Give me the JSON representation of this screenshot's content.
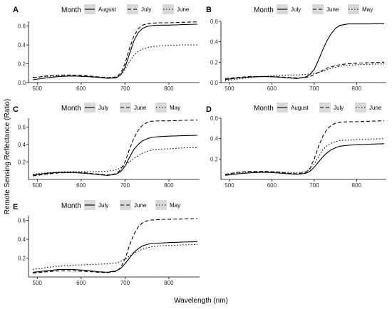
{
  "figure": {
    "xlabel": "Wavelength (nm)",
    "ylabel": "Remote Sensing Reflectance (Ratio)"
  },
  "chart_data": [
    {
      "type": "line",
      "panel": "A",
      "legend_title": "Month",
      "xlim": [
        480,
        870
      ],
      "ylim": [
        0,
        0.65
      ],
      "x_ticks": [
        500,
        600,
        700,
        800
      ],
      "y_ticks": [
        0.0,
        0.2,
        0.4,
        0.6
      ],
      "series": [
        {
          "name": "August",
          "dash": "solid",
          "x": [
            490,
            520,
            550,
            580,
            610,
            640,
            660,
            680,
            690,
            700,
            710,
            720,
            730,
            740,
            750,
            760,
            780,
            800,
            830,
            865
          ],
          "y": [
            0.03,
            0.05,
            0.065,
            0.07,
            0.065,
            0.055,
            0.045,
            0.05,
            0.08,
            0.16,
            0.3,
            0.44,
            0.53,
            0.575,
            0.595,
            0.605,
            0.61,
            0.61,
            0.615,
            0.62
          ]
        },
        {
          "name": "July",
          "dash": "dashed",
          "x": [
            490,
            520,
            550,
            580,
            610,
            640,
            660,
            680,
            690,
            700,
            710,
            720,
            730,
            740,
            750,
            760,
            780,
            800,
            830,
            865
          ],
          "y": [
            0.05,
            0.07,
            0.08,
            0.08,
            0.075,
            0.06,
            0.05,
            0.06,
            0.1,
            0.2,
            0.36,
            0.49,
            0.57,
            0.61,
            0.625,
            0.63,
            0.635,
            0.635,
            0.64,
            0.645
          ]
        },
        {
          "name": "June",
          "dash": "dotted",
          "x": [
            490,
            520,
            550,
            580,
            610,
            640,
            660,
            680,
            690,
            700,
            710,
            720,
            730,
            740,
            750,
            760,
            780,
            800,
            830,
            865
          ],
          "y": [
            0.055,
            0.065,
            0.07,
            0.07,
            0.065,
            0.06,
            0.055,
            0.06,
            0.08,
            0.14,
            0.22,
            0.29,
            0.33,
            0.355,
            0.37,
            0.38,
            0.39,
            0.395,
            0.4,
            0.4
          ]
        }
      ]
    },
    {
      "type": "line",
      "panel": "B",
      "legend_title": "Month",
      "xlim": [
        480,
        870
      ],
      "ylim": [
        0,
        0.6
      ],
      "x_ticks": [
        500,
        600,
        700,
        800
      ],
      "y_ticks": [
        0.0,
        0.2,
        0.4,
        0.6
      ],
      "series": [
        {
          "name": "July",
          "dash": "solid",
          "x": [
            490,
            520,
            550,
            580,
            610,
            640,
            660,
            680,
            690,
            700,
            710,
            720,
            730,
            740,
            750,
            760,
            780,
            800,
            830,
            865
          ],
          "y": [
            0.03,
            0.045,
            0.055,
            0.06,
            0.055,
            0.045,
            0.04,
            0.055,
            0.08,
            0.13,
            0.22,
            0.32,
            0.41,
            0.48,
            0.53,
            0.56,
            0.575,
            0.575,
            0.575,
            0.58
          ]
        },
        {
          "name": "June",
          "dash": "dashed",
          "x": [
            490,
            520,
            550,
            580,
            610,
            640,
            660,
            680,
            690,
            700,
            710,
            720,
            730,
            740,
            750,
            760,
            780,
            800,
            830,
            865
          ],
          "y": [
            0.04,
            0.05,
            0.06,
            0.06,
            0.058,
            0.05,
            0.045,
            0.05,
            0.06,
            0.08,
            0.1,
            0.12,
            0.14,
            0.155,
            0.165,
            0.175,
            0.185,
            0.19,
            0.195,
            0.2
          ]
        },
        {
          "name": "May",
          "dash": "dotted",
          "x": [
            490,
            520,
            550,
            580,
            610,
            640,
            660,
            680,
            690,
            700,
            710,
            720,
            730,
            740,
            750,
            760,
            780,
            800,
            830,
            865
          ],
          "y": [
            0.02,
            0.035,
            0.05,
            0.06,
            0.07,
            0.075,
            0.075,
            0.08,
            0.085,
            0.09,
            0.1,
            0.11,
            0.125,
            0.14,
            0.15,
            0.16,
            0.17,
            0.175,
            0.18,
            0.185
          ]
        }
      ]
    },
    {
      "type": "line",
      "panel": "C",
      "legend_title": "Month",
      "xlim": [
        480,
        870
      ],
      "ylim": [
        0,
        0.7
      ],
      "x_ticks": [
        500,
        600,
        700,
        800
      ],
      "y_ticks": [
        0.2,
        0.4,
        0.6
      ],
      "series": [
        {
          "name": "July",
          "dash": "solid",
          "x": [
            490,
            520,
            550,
            580,
            610,
            640,
            660,
            680,
            690,
            700,
            710,
            720,
            730,
            740,
            750,
            760,
            780,
            800,
            830,
            865
          ],
          "y": [
            0.05,
            0.07,
            0.08,
            0.08,
            0.07,
            0.055,
            0.045,
            0.06,
            0.09,
            0.15,
            0.25,
            0.34,
            0.4,
            0.44,
            0.465,
            0.48,
            0.49,
            0.495,
            0.5,
            0.505
          ]
        },
        {
          "name": "June",
          "dash": "dashed",
          "x": [
            490,
            520,
            550,
            580,
            610,
            640,
            660,
            680,
            690,
            700,
            710,
            720,
            730,
            740,
            750,
            760,
            780,
            800,
            830,
            865
          ],
          "y": [
            0.04,
            0.06,
            0.075,
            0.08,
            0.075,
            0.06,
            0.05,
            0.065,
            0.11,
            0.2,
            0.34,
            0.47,
            0.56,
            0.62,
            0.65,
            0.665,
            0.67,
            0.67,
            0.675,
            0.68
          ]
        },
        {
          "name": "May",
          "dash": "dotted",
          "x": [
            490,
            520,
            550,
            580,
            610,
            640,
            660,
            680,
            690,
            700,
            710,
            720,
            730,
            740,
            750,
            760,
            780,
            800,
            830,
            865
          ],
          "y": [
            0.06,
            0.075,
            0.085,
            0.09,
            0.09,
            0.09,
            0.095,
            0.11,
            0.13,
            0.16,
            0.2,
            0.24,
            0.27,
            0.3,
            0.32,
            0.335,
            0.345,
            0.35,
            0.36,
            0.365
          ]
        }
      ]
    },
    {
      "type": "line",
      "panel": "D",
      "legend_title": "Month",
      "xlim": [
        480,
        870
      ],
      "ylim": [
        0,
        0.6
      ],
      "x_ticks": [
        500,
        600,
        700,
        800
      ],
      "y_ticks": [
        0.2,
        0.4,
        0.6
      ],
      "series": [
        {
          "name": "August",
          "dash": "solid",
          "x": [
            490,
            520,
            550,
            580,
            610,
            640,
            660,
            680,
            690,
            700,
            710,
            720,
            730,
            740,
            750,
            760,
            780,
            800,
            830,
            865
          ],
          "y": [
            0.04,
            0.055,
            0.065,
            0.07,
            0.065,
            0.055,
            0.05,
            0.06,
            0.08,
            0.12,
            0.17,
            0.22,
            0.26,
            0.29,
            0.31,
            0.325,
            0.335,
            0.34,
            0.345,
            0.35
          ]
        },
        {
          "name": "July",
          "dash": "dashed",
          "x": [
            490,
            520,
            550,
            580,
            610,
            640,
            660,
            680,
            690,
            700,
            710,
            720,
            730,
            740,
            750,
            760,
            780,
            800,
            830,
            865
          ],
          "y": [
            0.05,
            0.07,
            0.08,
            0.08,
            0.075,
            0.06,
            0.055,
            0.07,
            0.11,
            0.2,
            0.32,
            0.42,
            0.49,
            0.53,
            0.55,
            0.56,
            0.565,
            0.565,
            0.57,
            0.575
          ]
        },
        {
          "name": "June",
          "dash": "dotted",
          "x": [
            490,
            520,
            550,
            580,
            610,
            640,
            660,
            680,
            690,
            700,
            710,
            720,
            730,
            740,
            750,
            760,
            780,
            800,
            830,
            865
          ],
          "y": [
            0.05,
            0.065,
            0.075,
            0.078,
            0.075,
            0.068,
            0.065,
            0.075,
            0.1,
            0.15,
            0.22,
            0.29,
            0.33,
            0.355,
            0.37,
            0.38,
            0.385,
            0.39,
            0.395,
            0.4
          ]
        }
      ]
    },
    {
      "type": "line",
      "panel": "E",
      "legend_title": "Month",
      "xlim": [
        480,
        870
      ],
      "ylim": [
        0,
        0.65
      ],
      "x_ticks": [
        500,
        600,
        700,
        800
      ],
      "y_ticks": [
        0.2,
        0.4,
        0.6
      ],
      "series": [
        {
          "name": "July",
          "dash": "solid",
          "x": [
            490,
            520,
            550,
            580,
            610,
            640,
            660,
            680,
            690,
            700,
            710,
            720,
            730,
            740,
            750,
            760,
            780,
            800,
            830,
            865
          ],
          "y": [
            0.05,
            0.065,
            0.08,
            0.08,
            0.07,
            0.055,
            0.05,
            0.065,
            0.09,
            0.14,
            0.2,
            0.26,
            0.3,
            0.33,
            0.345,
            0.355,
            0.36,
            0.365,
            0.37,
            0.375
          ]
        },
        {
          "name": "June",
          "dash": "dashed",
          "x": [
            490,
            520,
            550,
            580,
            610,
            640,
            660,
            680,
            690,
            700,
            710,
            720,
            730,
            740,
            750,
            760,
            780,
            800,
            830,
            865
          ],
          "y": [
            0.04,
            0.055,
            0.065,
            0.065,
            0.06,
            0.05,
            0.045,
            0.06,
            0.1,
            0.19,
            0.33,
            0.45,
            0.53,
            0.575,
            0.595,
            0.605,
            0.61,
            0.612,
            0.615,
            0.62
          ]
        },
        {
          "name": "May",
          "dash": "dotted",
          "x": [
            490,
            520,
            550,
            580,
            610,
            640,
            660,
            680,
            690,
            700,
            710,
            720,
            730,
            740,
            750,
            760,
            780,
            800,
            830,
            865
          ],
          "y": [
            0.08,
            0.1,
            0.115,
            0.125,
            0.13,
            0.135,
            0.14,
            0.15,
            0.165,
            0.19,
            0.22,
            0.25,
            0.275,
            0.295,
            0.31,
            0.32,
            0.33,
            0.335,
            0.34,
            0.345
          ]
        }
      ]
    }
  ]
}
